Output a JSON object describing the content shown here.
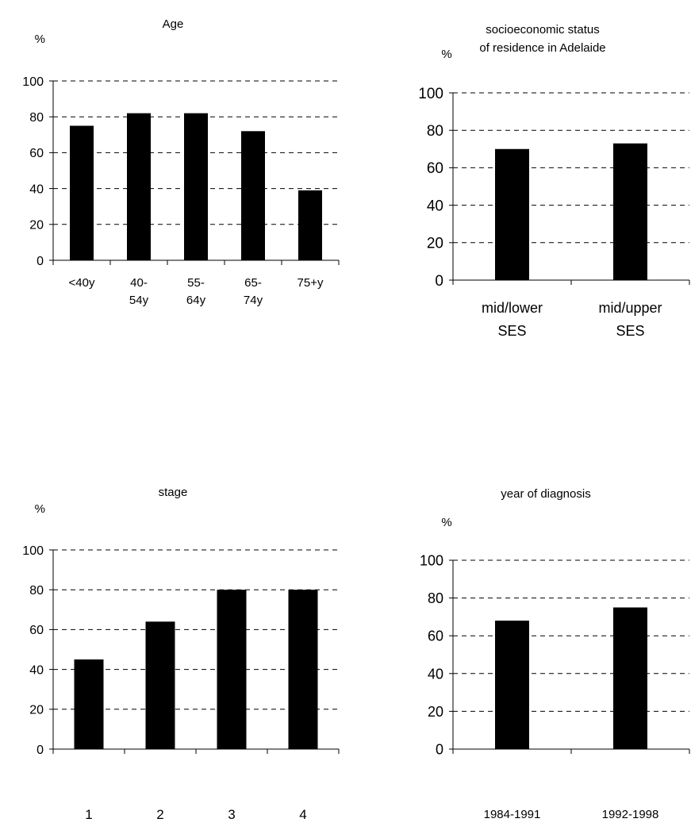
{
  "chart_data": [
    {
      "type": "bar",
      "title_lines": [
        "Age"
      ],
      "ylabel": "%",
      "ylim": [
        0,
        100
      ],
      "yticks": [
        0,
        20,
        40,
        60,
        80,
        100
      ],
      "grid": true,
      "categories": [
        [
          "<40y"
        ],
        [
          "40-",
          "54y"
        ],
        [
          "55-",
          "64y"
        ],
        [
          "65-",
          "74y"
        ],
        [
          "75+y"
        ]
      ],
      "values": [
        75,
        82,
        82,
        72,
        39
      ]
    },
    {
      "type": "bar",
      "title_lines": [
        "socioeconomic status",
        "of residence in Adelaide"
      ],
      "ylabel": "%",
      "ylim": [
        0,
        100
      ],
      "yticks": [
        0,
        20,
        40,
        60,
        80,
        100
      ],
      "grid": true,
      "categories": [
        [
          "mid/lower",
          "SES"
        ],
        [
          "mid/upper",
          "SES"
        ]
      ],
      "values": [
        70,
        73
      ]
    },
    {
      "type": "bar",
      "title_lines": [
        "stage"
      ],
      "ylabel": "%",
      "ylim": [
        0,
        100
      ],
      "yticks": [
        0,
        20,
        40,
        60,
        80,
        100
      ],
      "grid": true,
      "categories": [
        [
          "1"
        ],
        [
          "2"
        ],
        [
          "3"
        ],
        [
          "4"
        ]
      ],
      "values": [
        45,
        64,
        80,
        80
      ]
    },
    {
      "type": "bar",
      "title_lines": [
        "year of diagnosis"
      ],
      "ylabel": "%",
      "ylim": [
        0,
        100
      ],
      "yticks": [
        0,
        20,
        40,
        60,
        80,
        100
      ],
      "grid": true,
      "categories": [
        [
          "1984-1991"
        ],
        [
          "1992-1998"
        ]
      ],
      "values": [
        68,
        75
      ]
    }
  ],
  "colors": {
    "bar": "#000000",
    "axis": "#000000",
    "grid": "#000000",
    "background": "#ffffff"
  }
}
